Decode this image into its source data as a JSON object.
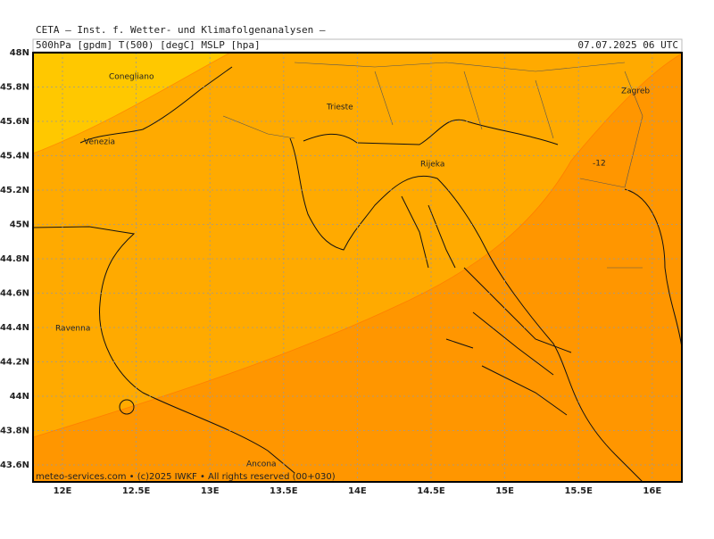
{
  "header": {
    "title": "CETA — Inst. f. Wetter- und Klimafolgenanalysen —",
    "params": "500hPa [gpdm] T(500) [degC] MSLP [hpa]",
    "date": "07.07.2025 06 UTC"
  },
  "axes": {
    "lat_labels": [
      "48N",
      "45.8N",
      "45.6N",
      "45.4N",
      "45.2N",
      "45N",
      "44.8N",
      "44.6N",
      "44.4N",
      "44.2N",
      "44N",
      "43.8N",
      "43.6N"
    ],
    "lon_labels": [
      "12E",
      "12.5E",
      "13E",
      "13.5E",
      "14E",
      "14.5E",
      "15E",
      "15.5E",
      "16E"
    ]
  },
  "cities": [
    "Conegliano",
    "Venezia",
    "Trieste",
    "Rijeka",
    "Zagreb",
    "Ravenna",
    "Ancona"
  ],
  "contour_labels": [
    "-12"
  ],
  "footer": "meteo-services.com • (c)2025 IWKF • All rights reserved (00+030)"
}
